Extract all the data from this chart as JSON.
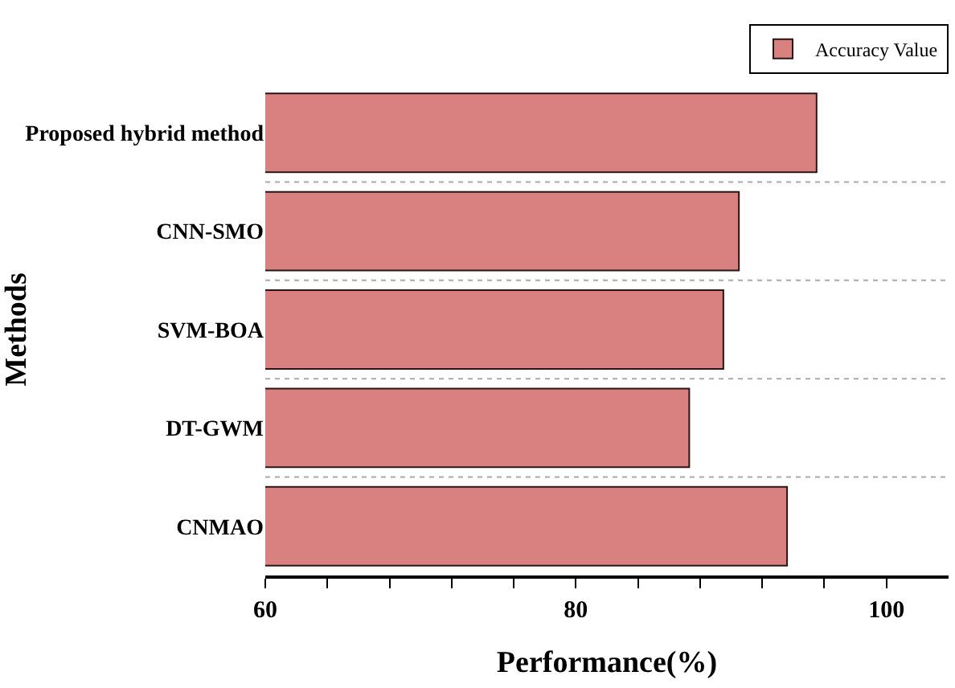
{
  "chart_data": {
    "type": "bar",
    "orientation": "horizontal",
    "xlabel": "Performance(%)",
    "ylabel": "Methods",
    "categories": [
      "Proposed hybrid method",
      "CNN-SMO",
      "SVM-BOA",
      "DT-GWM",
      "CNMAO"
    ],
    "series": [
      {
        "name": "Accuracy Value",
        "color": "#d98080",
        "values": [
          95.5,
          90.5,
          89.5,
          87.3,
          93.6
        ]
      }
    ],
    "xlim": [
      60,
      104
    ],
    "xticks": [
      60,
      {
        "value": 64,
        "label": null
      },
      {
        "value": 68,
        "label": null
      },
      {
        "value": 72,
        "label": null
      },
      {
        "value": 76,
        "label": null
      },
      80,
      {
        "value": 84,
        "label": null
      },
      {
        "value": 88,
        "label": null
      },
      {
        "value": 92,
        "label": null
      },
      {
        "value": 96,
        "label": null
      },
      100
    ],
    "grid": "y",
    "legend": "top right"
  }
}
